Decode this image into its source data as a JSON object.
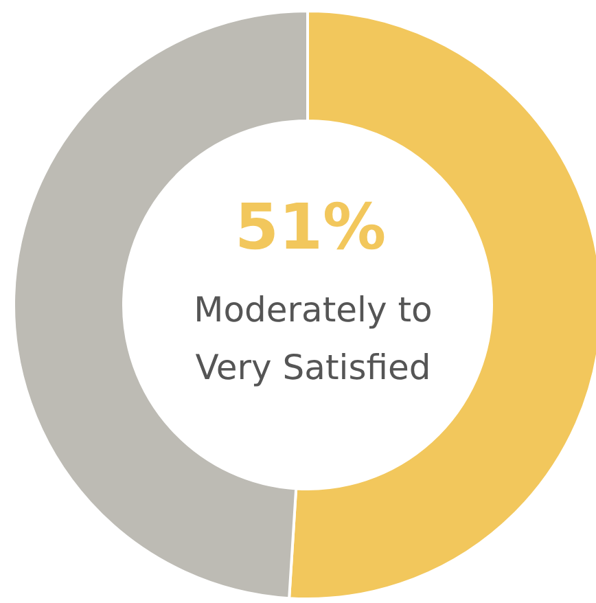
{
  "chart_data": {
    "type": "donut",
    "categories": [
      null,
      null
    ],
    "values": [
      51,
      49
    ],
    "colors": [
      "#f2c75c",
      "#bdbbb4"
    ],
    "annotations": [
      "51%",
      "Moderately to Very Satisfied"
    ]
  }
}
